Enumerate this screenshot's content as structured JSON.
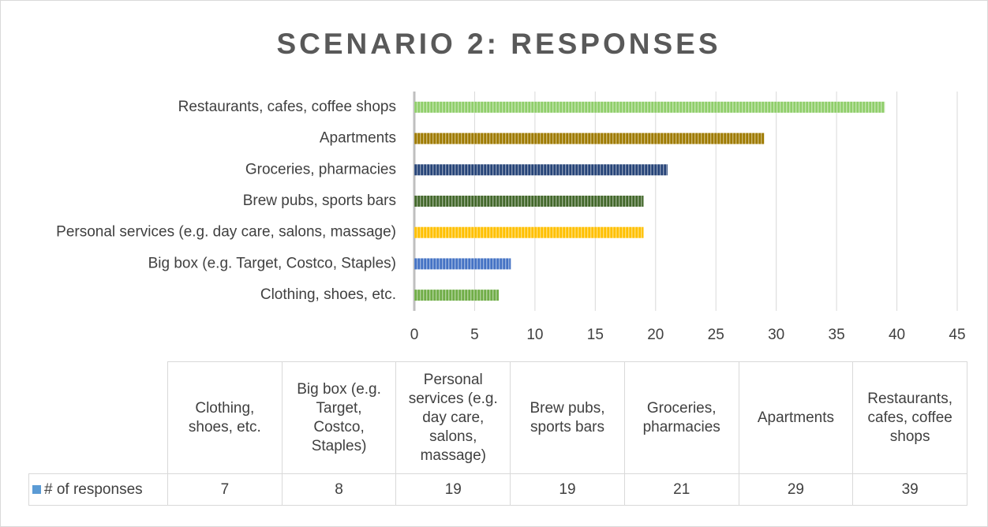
{
  "chart_data": {
    "type": "bar",
    "orientation": "horizontal",
    "title": "SCENARIO 2: RESPONSES",
    "categories": [
      "Clothing, shoes, etc.",
      "Big box (e.g. Target, Costco, Staples)",
      "Personal services (e.g. day care, salons, massage)",
      "Brew pubs, sports bars",
      "Groceries, pharmacies",
      "Apartments",
      "Restaurants, cafes, coffee shops"
    ],
    "series": [
      {
        "name": "# of responses",
        "color": "#5b9bd5",
        "values": [
          7,
          8,
          19,
          19,
          21,
          29,
          39
        ]
      }
    ],
    "colors": [
      "#70ad47",
      "#4472c4",
      "#ffc000",
      "#43682b",
      "#264478",
      "#9e7a00",
      "#8fce6a"
    ],
    "xlim": [
      0,
      45
    ],
    "xticks": [
      0,
      5,
      10,
      15,
      20,
      25,
      30,
      35,
      40,
      45
    ],
    "grid": true,
    "data_table": true
  }
}
